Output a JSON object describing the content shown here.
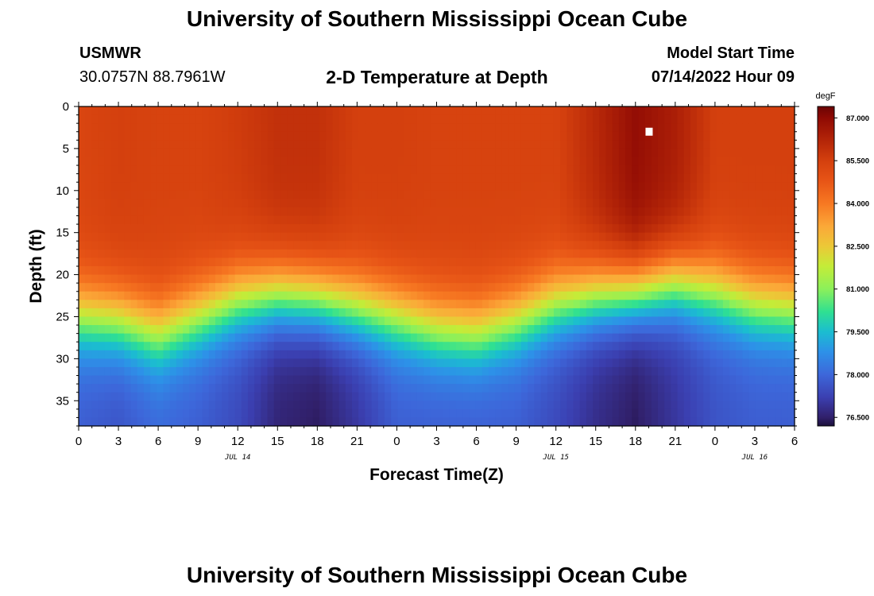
{
  "header": {
    "title": "University of Southern Mississippi Ocean Cube",
    "station": "USMWR",
    "coords": "30.0757N  88.7961W",
    "subtitle": "2-D Temperature at Depth",
    "model_start_label": "Model Start Time",
    "model_start_value": "07/14/2022 Hour 09"
  },
  "footer": {
    "title": "University of Southern Mississippi Ocean Cube"
  },
  "chart_data": {
    "type": "heatmap",
    "title": "2-D Temperature at Depth",
    "xlabel": "Forecast Time(Z)",
    "ylabel": "Depth (ft)",
    "x_tick_labels": [
      "0",
      "3",
      "6",
      "9",
      "12",
      "15",
      "18",
      "21",
      "0",
      "3",
      "6",
      "9",
      "12",
      "15",
      "18",
      "21",
      "0",
      "3",
      "6"
    ],
    "x_hours_since_jul14_00z": [
      0,
      3,
      6,
      9,
      12,
      15,
      18,
      21,
      24,
      27,
      30,
      33,
      36,
      39,
      42,
      45,
      48,
      51,
      54
    ],
    "xlim": [
      0,
      54
    ],
    "date_labels": [
      {
        "text": "JUL 14",
        "hour": 12
      },
      {
        "text": "JUL 15",
        "hour": 36
      },
      {
        "text": "JUL 16",
        "hour": 51
      }
    ],
    "y_ticks": [
      0,
      5,
      10,
      15,
      20,
      25,
      30,
      35
    ],
    "ylim": [
      0,
      38
    ],
    "y_inverted": true,
    "colorbar": {
      "unit": "degF",
      "ticks": [
        "87.000",
        "85.500",
        "84.000",
        "82.500",
        "81.000",
        "79.500",
        "78.000",
        "76.500"
      ],
      "range": [
        76.2,
        87.4
      ],
      "stops": [
        {
          "value": 76.2,
          "color": "#1b0f3b"
        },
        {
          "value": 76.5,
          "color": "#31206b"
        },
        {
          "value": 77.2,
          "color": "#3b3fb0"
        },
        {
          "value": 78.0,
          "color": "#3d67da"
        },
        {
          "value": 78.8,
          "color": "#2d91e8"
        },
        {
          "value": 79.5,
          "color": "#1bbdd0"
        },
        {
          "value": 80.2,
          "color": "#2fe092"
        },
        {
          "value": 81.0,
          "color": "#8cf05a"
        },
        {
          "value": 81.8,
          "color": "#c4ec38"
        },
        {
          "value": 82.5,
          "color": "#ecc837"
        },
        {
          "value": 83.2,
          "color": "#fba838"
        },
        {
          "value": 84.0,
          "color": "#f77822"
        },
        {
          "value": 84.8,
          "color": "#e75416"
        },
        {
          "value": 85.5,
          "color": "#d4400e"
        },
        {
          "value": 86.2,
          "color": "#b42508"
        },
        {
          "value": 87.0,
          "color": "#8f0a04"
        },
        {
          "value": 87.4,
          "color": "#6b0404"
        }
      ]
    },
    "temperature_field": {
      "units": "degF",
      "time_hours": [
        0,
        3,
        6,
        9,
        12,
        15,
        18,
        21,
        24,
        27,
        30,
        33,
        36,
        39,
        42,
        45,
        48,
        51,
        54
      ],
      "surface_temp": [
        85.3,
        85.5,
        85.4,
        85.4,
        85.6,
        85.9,
        85.9,
        85.5,
        85.5,
        85.4,
        85.4,
        85.4,
        85.4,
        86.1,
        86.9,
        86.4,
        85.5,
        85.5,
        85.5
      ],
      "thermocline_depth_ft": [
        25,
        25.5,
        27,
        25,
        23,
        22.5,
        23,
        24,
        25,
        26.5,
        27,
        25.5,
        23.5,
        22.5,
        22,
        21,
        22,
        23.5,
        24
      ],
      "bottom_temp": [
        77.8,
        77.6,
        78.0,
        77.8,
        77.4,
        76.6,
        76.4,
        77.0,
        77.8,
        77.8,
        77.8,
        77.8,
        77.4,
        76.8,
        76.4,
        77.0,
        77.6,
        77.8,
        77.8
      ],
      "max_marker": {
        "time_hour": 43,
        "depth_ft": 3
      }
    }
  }
}
